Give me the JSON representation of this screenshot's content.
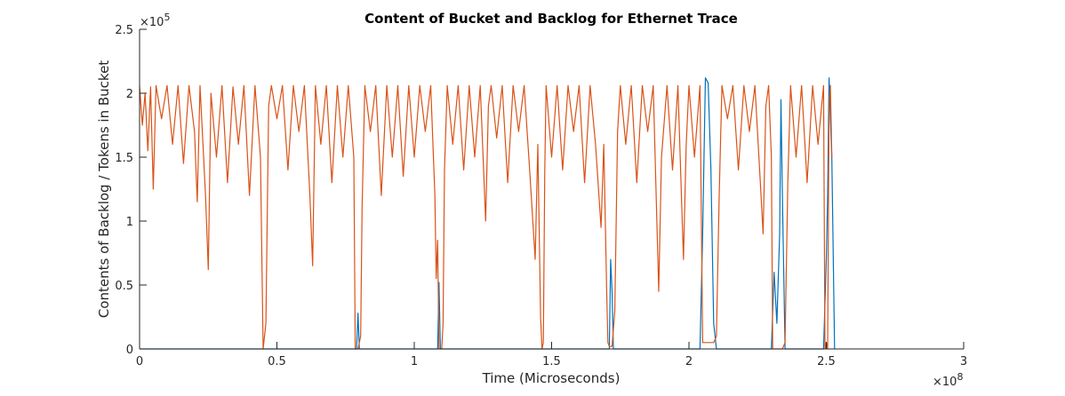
{
  "chart_data": {
    "type": "line",
    "title": "Content of Bucket and Backlog for Ethernet Trace",
    "xlabel": "Time (Microseconds)",
    "ylabel": "Contents of Backlog / Tokens in Bucket",
    "x_exponent_label": "×10",
    "x_exponent_power": "8",
    "y_exponent_label": "×10",
    "y_exponent_power": "5",
    "xlim": [
      0,
      3
    ],
    "ylim": [
      0,
      2.5
    ],
    "x_ticks": [
      0,
      0.5,
      1,
      1.5,
      2,
      2.5,
      3
    ],
    "x_tick_labels": [
      "0",
      "0.5",
      "1",
      "1.5",
      "2",
      "2.5",
      "3"
    ],
    "y_ticks": [
      0,
      0.5,
      1,
      1.5,
      2,
      2.5
    ],
    "y_tick_labels": [
      "0",
      "0.5",
      "1",
      "1.5",
      "2",
      "2.5"
    ],
    "grid": false,
    "series": [
      {
        "color": "#0072BD",
        "points": [
          [
            0,
            0
          ],
          [
            0.79,
            0
          ],
          [
            0.795,
            0.28
          ],
          [
            0.8,
            0
          ],
          [
            1.085,
            0
          ],
          [
            1.09,
            0.52
          ],
          [
            1.095,
            0
          ],
          [
            1.71,
            0
          ],
          [
            1.715,
            0.7
          ],
          [
            1.72,
            0.45
          ],
          [
            1.725,
            0
          ],
          [
            2.04,
            0
          ],
          [
            2.05,
            0.9
          ],
          [
            2.06,
            2.12
          ],
          [
            2.07,
            2.08
          ],
          [
            2.08,
            1.4
          ],
          [
            2.09,
            0.2
          ],
          [
            2.1,
            0
          ],
          [
            2.3,
            0
          ],
          [
            2.31,
            0.6
          ],
          [
            2.32,
            0.2
          ],
          [
            2.33,
            0.9
          ],
          [
            2.335,
            1.95
          ],
          [
            2.34,
            1.2
          ],
          [
            2.35,
            0
          ],
          [
            2.49,
            0
          ],
          [
            2.5,
            0.7
          ],
          [
            2.505,
            1.2
          ],
          [
            2.51,
            2.12
          ],
          [
            2.515,
            1.8
          ],
          [
            2.52,
            1.5
          ],
          [
            2.53,
            0
          ]
        ]
      },
      {
        "color": "#D95319",
        "points": [
          [
            0,
            2.06
          ],
          [
            0.01,
            1.75
          ],
          [
            0.02,
            2.0
          ],
          [
            0.03,
            1.55
          ],
          [
            0.04,
            2.05
          ],
          [
            0.05,
            1.25
          ],
          [
            0.06,
            2.06
          ],
          [
            0.08,
            1.8
          ],
          [
            0.1,
            2.06
          ],
          [
            0.12,
            1.6
          ],
          [
            0.14,
            2.06
          ],
          [
            0.16,
            1.45
          ],
          [
            0.18,
            2.06
          ],
          [
            0.2,
            1.7
          ],
          [
            0.21,
            1.15
          ],
          [
            0.22,
            2.06
          ],
          [
            0.24,
            1.2
          ],
          [
            0.25,
            0.62
          ],
          [
            0.26,
            2.0
          ],
          [
            0.28,
            1.5
          ],
          [
            0.3,
            2.06
          ],
          [
            0.32,
            1.3
          ],
          [
            0.34,
            2.05
          ],
          [
            0.36,
            1.6
          ],
          [
            0.38,
            2.06
          ],
          [
            0.4,
            1.2
          ],
          [
            0.42,
            2.06
          ],
          [
            0.44,
            1.5
          ],
          [
            0.45,
            0.0
          ],
          [
            0.46,
            0.2
          ],
          [
            0.47,
            1.9
          ],
          [
            0.48,
            2.06
          ],
          [
            0.5,
            1.8
          ],
          [
            0.52,
            2.06
          ],
          [
            0.54,
            1.4
          ],
          [
            0.56,
            2.06
          ],
          [
            0.58,
            1.7
          ],
          [
            0.6,
            2.06
          ],
          [
            0.62,
            1.2
          ],
          [
            0.63,
            0.65
          ],
          [
            0.64,
            2.06
          ],
          [
            0.66,
            1.6
          ],
          [
            0.68,
            2.06
          ],
          [
            0.7,
            1.3
          ],
          [
            0.72,
            2.06
          ],
          [
            0.74,
            1.5
          ],
          [
            0.76,
            2.06
          ],
          [
            0.78,
            1.5
          ],
          [
            0.785,
            0.0
          ],
          [
            0.795,
            0.0
          ],
          [
            0.805,
            0.1
          ],
          [
            0.81,
            1.1
          ],
          [
            0.82,
            2.06
          ],
          [
            0.84,
            1.7
          ],
          [
            0.86,
            2.06
          ],
          [
            0.88,
            1.2
          ],
          [
            0.9,
            2.06
          ],
          [
            0.92,
            1.5
          ],
          [
            0.94,
            2.06
          ],
          [
            0.96,
            1.35
          ],
          [
            0.98,
            2.06
          ],
          [
            1.0,
            1.5
          ],
          [
            1.02,
            2.06
          ],
          [
            1.04,
            1.7
          ],
          [
            1.06,
            2.06
          ],
          [
            1.075,
            1.2
          ],
          [
            1.08,
            0.55
          ],
          [
            1.085,
            0.85
          ],
          [
            1.09,
            0.0
          ],
          [
            1.1,
            0.0
          ],
          [
            1.105,
            0.2
          ],
          [
            1.11,
            1.4
          ],
          [
            1.12,
            2.06
          ],
          [
            1.14,
            1.6
          ],
          [
            1.16,
            2.06
          ],
          [
            1.18,
            1.4
          ],
          [
            1.2,
            2.06
          ],
          [
            1.22,
            1.5
          ],
          [
            1.24,
            2.06
          ],
          [
            1.26,
            1.0
          ],
          [
            1.27,
            1.9
          ],
          [
            1.28,
            2.06
          ],
          [
            1.3,
            1.65
          ],
          [
            1.32,
            2.06
          ],
          [
            1.34,
            1.3
          ],
          [
            1.36,
            2.06
          ],
          [
            1.38,
            1.7
          ],
          [
            1.4,
            2.06
          ],
          [
            1.42,
            1.4
          ],
          [
            1.44,
            0.7
          ],
          [
            1.45,
            1.6
          ],
          [
            1.46,
            0.25
          ],
          [
            1.465,
            0.0
          ],
          [
            1.47,
            0.05
          ],
          [
            1.475,
            1.4
          ],
          [
            1.48,
            2.06
          ],
          [
            1.5,
            1.5
          ],
          [
            1.52,
            2.06
          ],
          [
            1.54,
            1.4
          ],
          [
            1.56,
            2.06
          ],
          [
            1.58,
            1.7
          ],
          [
            1.6,
            2.06
          ],
          [
            1.62,
            1.3
          ],
          [
            1.64,
            2.06
          ],
          [
            1.66,
            1.6
          ],
          [
            1.68,
            0.95
          ],
          [
            1.69,
            1.6
          ],
          [
            1.7,
            0.5
          ],
          [
            1.705,
            0.05
          ],
          [
            1.71,
            0.02
          ],
          [
            1.72,
            0.02
          ],
          [
            1.73,
            0.3
          ],
          [
            1.74,
            1.7
          ],
          [
            1.75,
            2.06
          ],
          [
            1.77,
            1.6
          ],
          [
            1.79,
            2.06
          ],
          [
            1.81,
            1.3
          ],
          [
            1.83,
            2.06
          ],
          [
            1.85,
            1.7
          ],
          [
            1.87,
            2.06
          ],
          [
            1.89,
            0.45
          ],
          [
            1.9,
            1.5
          ],
          [
            1.92,
            2.06
          ],
          [
            1.94,
            1.4
          ],
          [
            1.96,
            2.06
          ],
          [
            1.98,
            0.7
          ],
          [
            1.99,
            1.6
          ],
          [
            2.0,
            2.06
          ],
          [
            2.02,
            1.5
          ],
          [
            2.04,
            2.06
          ],
          [
            2.05,
            0.05
          ],
          [
            2.06,
            0.05
          ],
          [
            2.07,
            0.05
          ],
          [
            2.08,
            0.05
          ],
          [
            2.09,
            0.05
          ],
          [
            2.1,
            0.1
          ],
          [
            2.11,
            1.2
          ],
          [
            2.12,
            2.06
          ],
          [
            2.14,
            1.8
          ],
          [
            2.16,
            2.06
          ],
          [
            2.18,
            1.4
          ],
          [
            2.2,
            2.06
          ],
          [
            2.22,
            1.7
          ],
          [
            2.24,
            2.06
          ],
          [
            2.26,
            1.3
          ],
          [
            2.27,
            0.9
          ],
          [
            2.28,
            1.9
          ],
          [
            2.29,
            2.06
          ],
          [
            2.3,
            1.5
          ],
          [
            2.305,
            0.0
          ],
          [
            2.315,
            0.0
          ],
          [
            2.325,
            0.0
          ],
          [
            2.34,
            0.0
          ],
          [
            2.35,
            0.05
          ],
          [
            2.36,
            1.3
          ],
          [
            2.37,
            2.06
          ],
          [
            2.39,
            1.5
          ],
          [
            2.41,
            2.06
          ],
          [
            2.43,
            1.3
          ],
          [
            2.45,
            2.06
          ],
          [
            2.47,
            1.6
          ],
          [
            2.49,
            2.06
          ],
          [
            2.495,
            0.0
          ],
          [
            2.5,
            0.05
          ],
          [
            2.505,
            0.0
          ],
          [
            2.51,
            1.9
          ],
          [
            2.515,
            2.06
          ],
          [
            2.52,
            1.5
          ]
        ]
      }
    ]
  }
}
